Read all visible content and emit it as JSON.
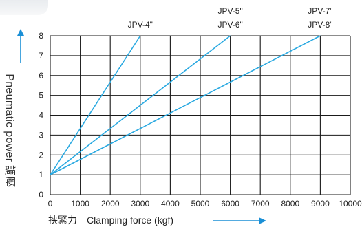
{
  "chart_data": {
    "type": "line",
    "xlabel": "Clamping force (kgf)",
    "xlabel_cn": "挟緊力",
    "ylabel": "Pneumatic power 調壓",
    "xlim": [
      0,
      10000
    ],
    "ylim": [
      0,
      8
    ],
    "x_ticks": [
      "0",
      "1000",
      "2000",
      "3000",
      "4000",
      "5000",
      "6000",
      "7000",
      "8000",
      "9000",
      "10000"
    ],
    "y_ticks": [
      "0",
      "1",
      "2",
      "3",
      "4",
      "5",
      "6",
      "7",
      "8"
    ],
    "grid": true,
    "series": [
      {
        "name": "JPV-4\"",
        "x": [
          0,
          3000
        ],
        "y": [
          1,
          8
        ]
      },
      {
        "name": "JPV-5\" / JPV-6\"",
        "x": [
          0,
          6000
        ],
        "y": [
          1,
          8
        ]
      },
      {
        "name": "JPV-7\" / JPV-8\"",
        "x": [
          0,
          9000
        ],
        "y": [
          1,
          8
        ]
      }
    ],
    "annotations": [
      "JPV-4\"",
      "JPV-5\"",
      "JPV-6\"",
      "JPV-7\"",
      "JPV-8\""
    ]
  },
  "colors": {
    "series_line": "#29a9e1",
    "axis_arrow": "#1a8fd6",
    "grid": "#1a1a1a",
    "text": "#222222"
  }
}
